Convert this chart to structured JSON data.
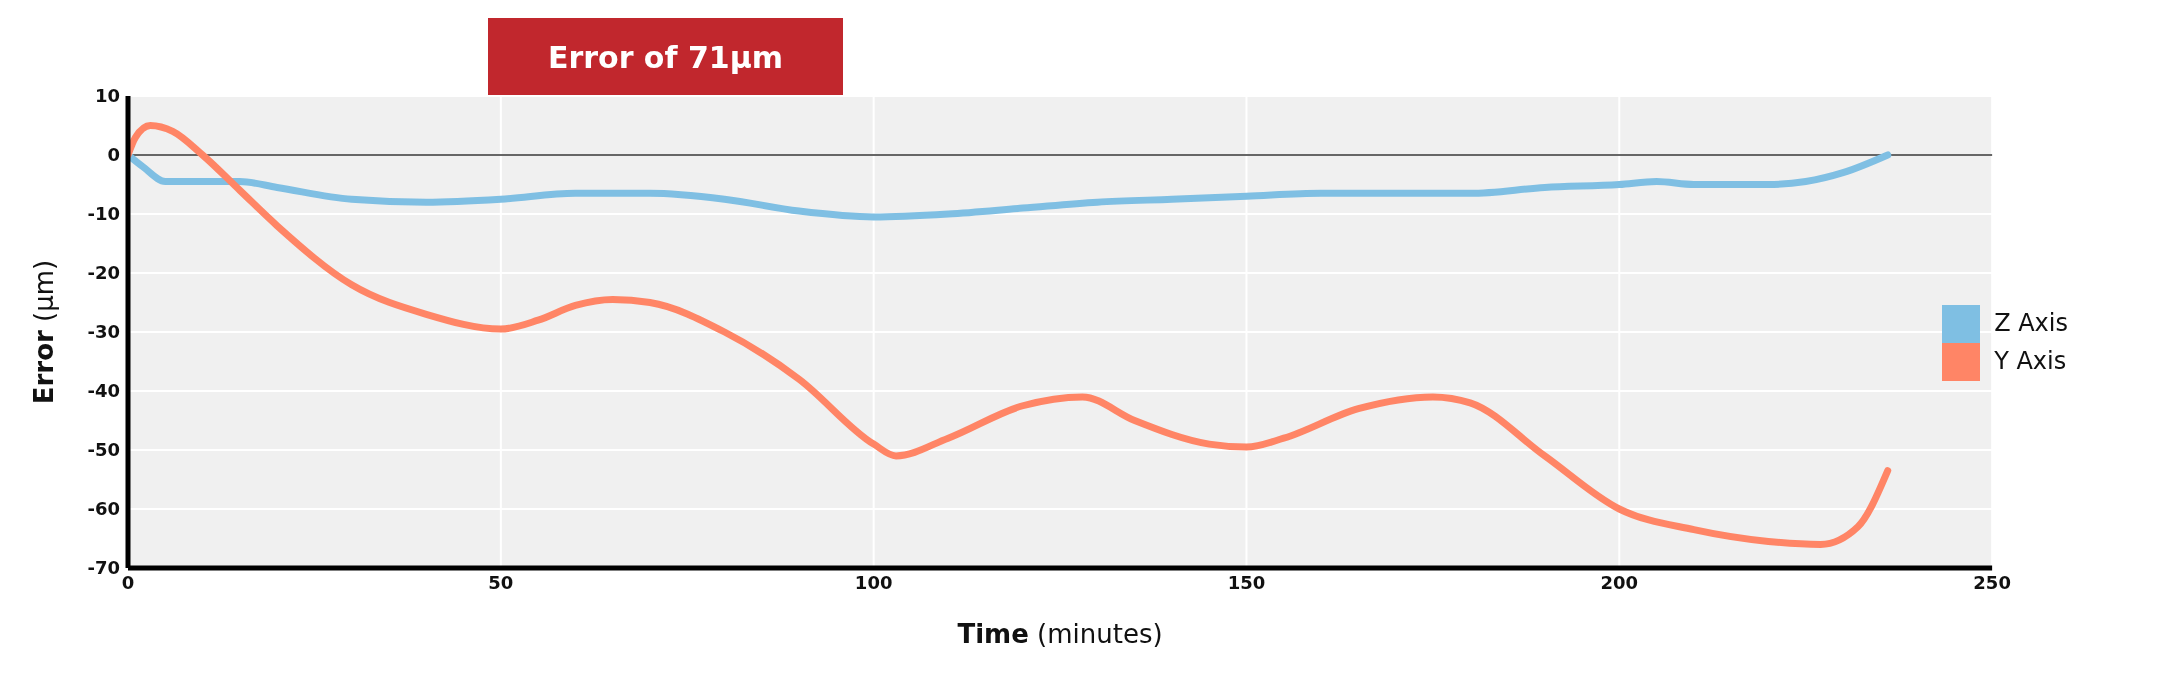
{
  "chart_data": {
    "type": "line",
    "xlabel": "Time (minutes)",
    "ylabel": "Error (µm)",
    "annotations": [
      "Error of 71µm"
    ],
    "xlim": [
      0,
      250
    ],
    "xticks": [
      0,
      50,
      100,
      150,
      200,
      250
    ],
    "ylim": [
      -70,
      10
    ],
    "yticks": [
      -70,
      -60,
      -50,
      -40,
      -30,
      -20,
      -10,
      0,
      10
    ],
    "grid": true,
    "legend": "right",
    "marker": "none",
    "line_style": "solid",
    "ref_lines": [
      {
        "axis": "y",
        "value": 0,
        "color": "#333333"
      }
    ],
    "series": [
      {
        "name": "Z Axis",
        "color": "#7fbfe3",
        "x": [
          0,
          2,
          5,
          10,
          15,
          20,
          30,
          40,
          50,
          60,
          70,
          80,
          90,
          100,
          110,
          120,
          130,
          140,
          150,
          160,
          170,
          180,
          190,
          200,
          205,
          210,
          220,
          225,
          230,
          236
        ],
        "values": [
          0,
          -2,
          -4.5,
          -4.5,
          -4.5,
          -5.5,
          -7.5,
          -8,
          -7.5,
          -6.5,
          -6.5,
          -7.5,
          -9.5,
          -10.5,
          -10,
          -9,
          -8,
          -7.5,
          -7,
          -6.5,
          -6.5,
          -6.5,
          -5.5,
          -5,
          -4.5,
          -5,
          -5,
          -4.5,
          -3,
          0
        ]
      },
      {
        "name": "Y Axis",
        "color": "#ff8566",
        "x": [
          0,
          1,
          3,
          6,
          10,
          15,
          20,
          30,
          40,
          50,
          55,
          60,
          65,
          70,
          80,
          90,
          100,
          103,
          110,
          120,
          128,
          135,
          145,
          150,
          155,
          165,
          175,
          180,
          190,
          200,
          210,
          220,
          227,
          232,
          236
        ],
        "values": [
          0,
          3,
          5,
          4,
          0,
          -6,
          -12,
          -22,
          -27,
          -29.5,
          -28,
          -25.5,
          -24.5,
          -25,
          -30,
          -38,
          -49,
          -51,
          -48,
          -42.5,
          -41,
          -45,
          -49,
          -49.5,
          -48,
          -43,
          -41,
          -42,
          -51,
          -60,
          -63.5,
          -65.5,
          -66,
          -63,
          -53.5
        ]
      }
    ]
  }
}
